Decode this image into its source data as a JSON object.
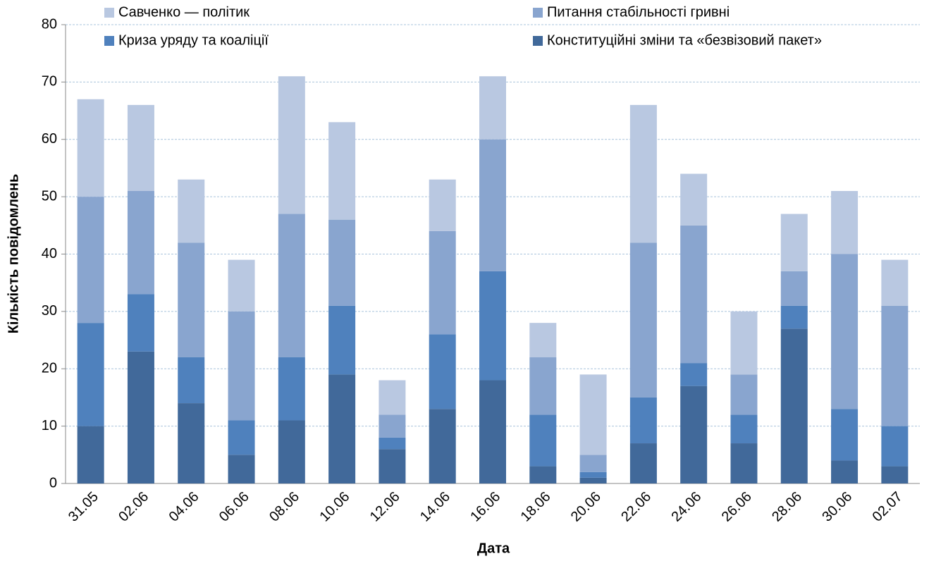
{
  "chart_data": {
    "type": "bar",
    "stacked": true,
    "x_label": "Дата",
    "y_label": "Кількість повідомлень",
    "categories": [
      "31.05",
      "02.06",
      "04.06",
      "06.06",
      "08.06",
      "10.06",
      "12.06",
      "14.06",
      "16.06",
      "18.06",
      "20.06",
      "22.06",
      "24.06",
      "26.06",
      "28.06",
      "30.06",
      "02.07"
    ],
    "series": [
      {
        "name": "Конституційні зміни та «безвізовий пакет»",
        "color": "#41699a",
        "values": [
          10,
          23,
          14,
          5,
          11,
          19,
          6,
          13,
          18,
          3,
          1,
          7,
          17,
          7,
          27,
          4,
          3
        ]
      },
      {
        "name": "Криза уряду та коаліції",
        "color": "#4f81bd",
        "values": [
          18,
          10,
          8,
          6,
          11,
          12,
          2,
          13,
          19,
          9,
          1,
          8,
          4,
          5,
          4,
          9,
          7
        ]
      },
      {
        "name": "Питання стабільності гривні",
        "color": "#89a5cf",
        "values": [
          22,
          18,
          20,
          19,
          25,
          15,
          4,
          18,
          23,
          10,
          3,
          27,
          24,
          7,
          6,
          27,
          21
        ]
      },
      {
        "name": "Савченко — політик",
        "color": "#b9c8e1",
        "values": [
          17,
          15,
          11,
          9,
          24,
          17,
          6,
          9,
          11,
          6,
          14,
          24,
          9,
          11,
          10,
          11,
          8
        ]
      }
    ],
    "ylim": [
      0,
      80
    ],
    "yticks": [
      0,
      10,
      20,
      30,
      40,
      50,
      60,
      70,
      80
    ],
    "grid": true
  }
}
